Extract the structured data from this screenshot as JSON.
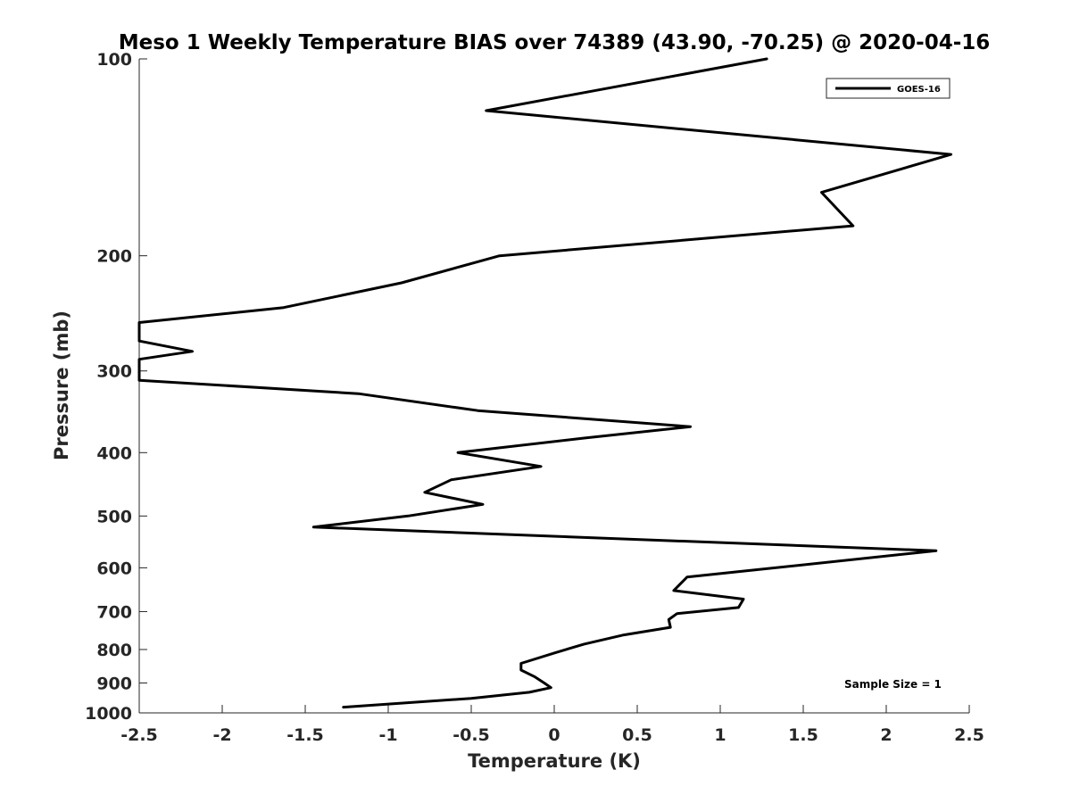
{
  "chart_data": {
    "type": "line",
    "title": "Meso 1 Weekly Temperature BIAS over 74389 (43.90, -70.25) @ 2020-04-16",
    "xlabel": "Temperature (K)",
    "ylabel": "Pressure (mb)",
    "xlim": [
      -2.5,
      2.5
    ],
    "ylim": [
      100,
      1000
    ],
    "yscale": "log",
    "y_reversed": true,
    "xticks": [
      -2.5,
      -2,
      -1.5,
      -1,
      -0.5,
      0,
      0.5,
      1,
      1.5,
      2,
      2.5
    ],
    "xtick_labels": [
      "-2.5",
      "-2",
      "-1.5",
      "-1",
      "-0.5",
      "0",
      "0.5",
      "1",
      "1.5",
      "2",
      "2.5"
    ],
    "yticks": [
      100,
      200,
      300,
      400,
      500,
      600,
      700,
      800,
      900,
      1000
    ],
    "ytick_labels": [
      "100",
      "200",
      "300",
      "400",
      "500",
      "600",
      "700",
      "800",
      "900",
      "1000"
    ],
    "grid": false,
    "legend_position": "top-right",
    "annotation": "Sample Size = 1",
    "series": [
      {
        "name": "GOES-16",
        "color": "#000000",
        "points": [
          {
            "x": 1.28,
            "y": 100
          },
          {
            "x": -0.41,
            "y": 120
          },
          {
            "x": 2.39,
            "y": 140
          },
          {
            "x": 1.61,
            "y": 160
          },
          {
            "x": 1.8,
            "y": 180
          },
          {
            "x": -0.33,
            "y": 200
          },
          {
            "x": -0.92,
            "y": 220
          },
          {
            "x": -1.63,
            "y": 240
          },
          {
            "x": -2.5,
            "y": 253
          },
          {
            "x": -2.5,
            "y": 270
          },
          {
            "x": -2.18,
            "y": 280
          },
          {
            "x": -2.5,
            "y": 288
          },
          {
            "x": -2.5,
            "y": 310
          },
          {
            "x": -1.18,
            "y": 325
          },
          {
            "x": -0.46,
            "y": 345
          },
          {
            "x": 0.82,
            "y": 365
          },
          {
            "x": 0.18,
            "y": 380
          },
          {
            "x": -0.58,
            "y": 400
          },
          {
            "x": -0.08,
            "y": 420
          },
          {
            "x": -0.62,
            "y": 440
          },
          {
            "x": -0.78,
            "y": 460
          },
          {
            "x": -0.43,
            "y": 480
          },
          {
            "x": -0.88,
            "y": 500
          },
          {
            "x": -1.45,
            "y": 520
          },
          {
            "x": 2.3,
            "y": 565
          },
          {
            "x": 0.8,
            "y": 620
          },
          {
            "x": 0.72,
            "y": 650
          },
          {
            "x": 1.14,
            "y": 670
          },
          {
            "x": 1.11,
            "y": 690
          },
          {
            "x": 0.74,
            "y": 705
          },
          {
            "x": 0.69,
            "y": 720
          },
          {
            "x": 0.7,
            "y": 740
          },
          {
            "x": 0.42,
            "y": 760
          },
          {
            "x": 0.18,
            "y": 785
          },
          {
            "x": 0.0,
            "y": 810
          },
          {
            "x": -0.2,
            "y": 840
          },
          {
            "x": -0.2,
            "y": 860
          },
          {
            "x": -0.12,
            "y": 880
          },
          {
            "x": -0.06,
            "y": 900
          },
          {
            "x": -0.02,
            "y": 915
          },
          {
            "x": -0.15,
            "y": 930
          },
          {
            "x": -0.5,
            "y": 950
          },
          {
            "x": -1.27,
            "y": 980
          }
        ]
      }
    ]
  }
}
